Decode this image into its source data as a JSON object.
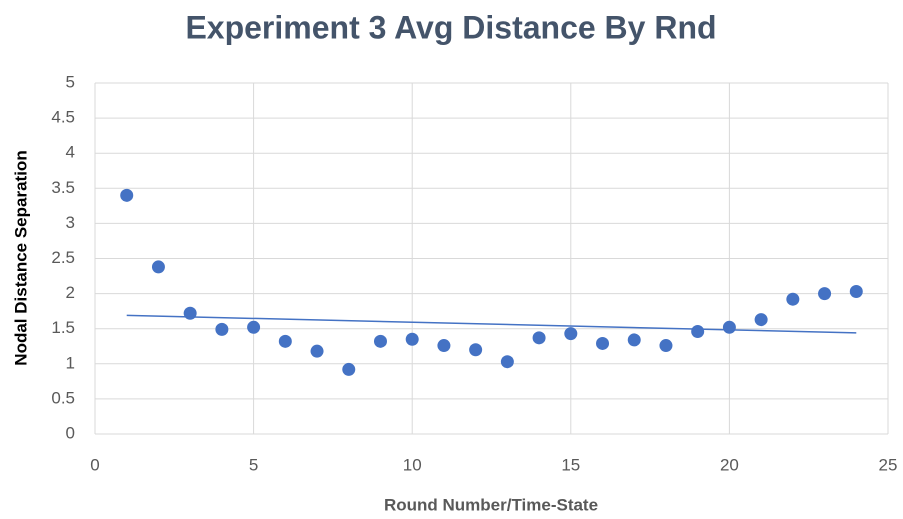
{
  "chart_data": {
    "type": "scatter",
    "title": "Experiment 3 Avg Distance By Rnd",
    "x_label": "Round Number/Time-State",
    "y_label": "Nodal Distance Separation",
    "x": [
      1,
      2,
      3,
      4,
      5,
      6,
      7,
      8,
      9,
      10,
      11,
      12,
      13,
      14,
      15,
      16,
      17,
      18,
      19,
      20,
      21,
      22,
      23,
      24
    ],
    "series": [
      {
        "color": "#4472c4",
        "values": [
          3.4,
          2.38,
          1.72,
          1.49,
          1.52,
          1.32,
          1.18,
          0.92,
          1.32,
          1.35,
          1.26,
          1.2,
          1.03,
          1.37,
          1.43,
          1.29,
          1.34,
          1.26,
          1.46,
          1.52,
          1.63,
          1.92,
          2.0,
          2.03
        ]
      }
    ],
    "trendline": {
      "x": [
        1,
        24
      ],
      "values": [
        1.69,
        1.44
      ],
      "color": "#4472c4"
    },
    "xlim": [
      0,
      25
    ],
    "xticks": [
      0,
      5,
      10,
      15,
      20,
      25
    ],
    "ylim": [
      0,
      5
    ],
    "yticks": [
      0,
      0.5,
      1,
      1.5,
      2,
      2.5,
      3,
      3.5,
      4,
      4.5,
      5
    ],
    "grid": true
  }
}
